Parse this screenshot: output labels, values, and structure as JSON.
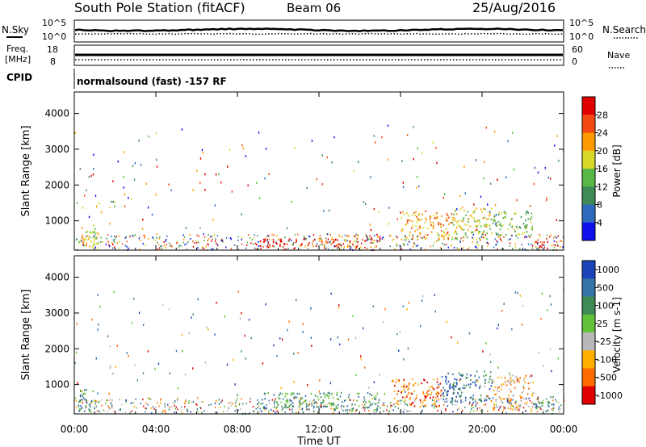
{
  "header": {
    "station": "South Pole Station (fitACF)",
    "beam": "Beam 06",
    "date": "25/Aug/2016"
  },
  "status_panels": {
    "nsky_label": "N.Sky",
    "nsky_top": "10^5",
    "nsky_bottom": "10^0",
    "nsearch_label": "N.Search",
    "nsearch_top": "10^5",
    "nsearch_bottom": "10^0",
    "freq_label_1": "Freq.",
    "freq_label_2": "[MHz]",
    "freq_top": "18",
    "freq_bottom": "8",
    "nave_label": "Nave",
    "nave_top": "60",
    "nave_bottom": "0",
    "cpid_label": "CPID",
    "cpid_text": "normalsound (fast) -157 RF"
  },
  "colors": {
    "power_scale": [
      "#1010ee",
      "#2e6bbf",
      "#3f8a55",
      "#57b845",
      "#d8d82a",
      "#ff9a00",
      "#f24a10",
      "#e00000"
    ],
    "velocity_scale": [
      "#1d43b8",
      "#3673a8",
      "#3f8a55",
      "#62c23a",
      "#b8b8b8",
      "#ffae00",
      "#ff6a00",
      "#e00000"
    ]
  },
  "chart_data": [
    {
      "type": "heatmap",
      "panel": "power",
      "ylabel": "Slant Range [km]",
      "ylim": [
        180,
        4600
      ],
      "y_ticks": [
        "1000",
        "2000",
        "3000",
        "4000"
      ],
      "x_ticks": [
        "00:00",
        "04:00",
        "08:00",
        "12:00",
        "16:00",
        "20:00",
        "00:00"
      ],
      "xlim_hours": [
        0,
        24
      ],
      "colorbar_label": "Power [dB]",
      "colorbar_ticks": [
        "4",
        "8",
        "12",
        "16",
        "20",
        "24",
        "28"
      ],
      "grid": false,
      "features": [
        {
          "t0": 0.2,
          "t1": 1.1,
          "r0": 250,
          "r1": 900,
          "level": 4
        },
        {
          "t0": 1.6,
          "t1": 1.9,
          "r0": 250,
          "r1": 450,
          "level": 7
        },
        {
          "t0": 1.7,
          "t1": 2.0,
          "r0": 1300,
          "r1": 1600,
          "level": 3
        },
        {
          "t0": 8.9,
          "t1": 10.6,
          "r0": 280,
          "r1": 600,
          "level": 7
        },
        {
          "t0": 10.6,
          "t1": 12.8,
          "r0": 300,
          "r1": 550,
          "level": 6
        },
        {
          "t0": 12.8,
          "t1": 15.0,
          "r0": 280,
          "r1": 650,
          "level": 6
        },
        {
          "t0": 16.0,
          "t1": 18.5,
          "r0": 500,
          "r1": 1300,
          "level": 5
        },
        {
          "t0": 18.5,
          "t1": 20.5,
          "r0": 500,
          "r1": 1400,
          "level": 4
        },
        {
          "t0": 20.5,
          "t1": 22.5,
          "r0": 600,
          "r1": 1300,
          "level": 3
        },
        {
          "t0": 22.5,
          "t1": 23.2,
          "r0": 250,
          "r1": 500,
          "level": 7
        }
      ]
    },
    {
      "type": "heatmap",
      "panel": "velocity",
      "ylabel": "Slant Range [km]",
      "xlabel": "Time UT",
      "ylim": [
        180,
        4600
      ],
      "y_ticks": [
        "1000",
        "2000",
        "3000",
        "4000"
      ],
      "x_ticks": [
        "00:00",
        "04:00",
        "08:00",
        "12:00",
        "16:00",
        "20:00",
        "00:00"
      ],
      "xlim_hours": [
        0,
        24
      ],
      "colorbar_label": "Velocity [m s-1]",
      "colorbar_ticks": [
        "1000",
        "500",
        "100",
        "25",
        "-25",
        "-100",
        "-500",
        "-1000"
      ],
      "grid": false,
      "features": [
        {
          "t0": 0.2,
          "t1": 1.2,
          "r0": 250,
          "r1": 900,
          "level": 2
        },
        {
          "t0": 1.6,
          "t1": 2.0,
          "r0": 250,
          "r1": 600,
          "level": 5
        },
        {
          "t0": 1.7,
          "t1": 2.0,
          "r0": 1300,
          "r1": 1600,
          "level": 5
        },
        {
          "t0": 9.0,
          "t1": 12.0,
          "r0": 300,
          "r1": 800,
          "level": 2
        },
        {
          "t0": 12.0,
          "t1": 15.0,
          "r0": 300,
          "r1": 800,
          "level": 2
        },
        {
          "t0": 15.5,
          "t1": 18.0,
          "r0": 400,
          "r1": 1200,
          "level": 6
        },
        {
          "t0": 18.0,
          "t1": 20.5,
          "r0": 500,
          "r1": 1400,
          "level": 1
        },
        {
          "t0": 20.5,
          "t1": 22.5,
          "r0": 300,
          "r1": 1300,
          "level": 5
        },
        {
          "t0": 22.5,
          "t1": 23.5,
          "r0": 300,
          "r1": 700,
          "level": 2
        }
      ]
    }
  ]
}
